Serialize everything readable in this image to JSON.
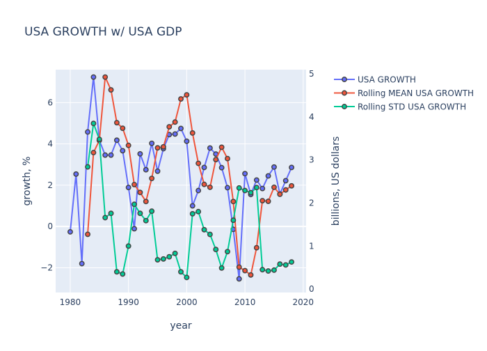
{
  "chart_data": {
    "type": "line",
    "title": "USA GROWTH w/ USA GDP",
    "xlabel": "year",
    "ylabel": "growth, %",
    "y2label": "billions, US dollars",
    "xlim": [
      1977.5,
      2020.5
    ],
    "ylim": [
      -3.2,
      7.6
    ],
    "y2lim": [
      -0.08,
      5.1
    ],
    "x_ticks": [
      1980,
      1990,
      2000,
      2010,
      2020
    ],
    "y_ticks": [
      -2,
      0,
      2,
      4,
      6
    ],
    "y2_ticks": [
      0,
      1,
      2,
      3,
      4,
      5
    ],
    "grid": true,
    "legend_position": "top-right",
    "colors": {
      "plot_bg": "#e5ecf6",
      "grid": "#ffffff",
      "text": "#2a3f5f",
      "marker_outline": "#444444"
    },
    "series": [
      {
        "name": "USA GROWTH",
        "axis": "y",
        "color": "#636efa",
        "x": [
          1980,
          1981,
          1982,
          1983,
          1984,
          1985,
          1986,
          1987,
          1988,
          1989,
          1990,
          1991,
          1992,
          1993,
          1994,
          1995,
          1996,
          1997,
          1998,
          1999,
          2000,
          2001,
          2002,
          2003,
          2004,
          2005,
          2006,
          2007,
          2008,
          2009,
          2010,
          2011,
          2012,
          2013,
          2014,
          2015,
          2016,
          2017,
          2018
        ],
        "values": [
          -0.26,
          2.54,
          -1.8,
          4.58,
          7.24,
          4.17,
          3.46,
          3.46,
          4.18,
          3.67,
          1.89,
          -0.11,
          3.52,
          2.75,
          4.03,
          2.68,
          3.77,
          4.45,
          4.48,
          4.75,
          4.13,
          1.0,
          1.74,
          2.86,
          3.8,
          3.51,
          2.85,
          1.88,
          -0.14,
          -2.54,
          2.56,
          1.55,
          2.25,
          1.84,
          2.45,
          2.88,
          1.57,
          2.22,
          2.86
        ]
      },
      {
        "name": "Rolling MEAN USA GROWTH",
        "axis": "y",
        "color": "#ef553b",
        "x": [
          1983,
          1984,
          1985,
          1986,
          1987,
          1988,
          1989,
          1990,
          1991,
          1992,
          1993,
          1994,
          1995,
          1996,
          1997,
          1998,
          1999,
          2000,
          2001,
          2002,
          2003,
          2004,
          2005,
          2006,
          2007,
          2008,
          2009,
          2010,
          2011,
          2012,
          2013,
          2014,
          2015,
          2016,
          2017,
          2018
        ],
        "values": [
          -0.38,
          3.58,
          4.17,
          7.24,
          6.62,
          5.03,
          4.76,
          3.93,
          2.03,
          1.65,
          1.21,
          2.33,
          3.81,
          3.86,
          4.83,
          5.06,
          6.18,
          6.38,
          4.53,
          3.06,
          2.04,
          1.9,
          3.24,
          3.84,
          3.29,
          1.21,
          -1.97,
          -2.14,
          -2.35,
          -1.03,
          1.25,
          1.22,
          1.9,
          1.56,
          1.77,
          1.97
        ]
      },
      {
        "name": "Rolling STD USA GROWTH",
        "axis": "y2",
        "color": "#00cc96",
        "x": [
          1983,
          1984,
          1985,
          1986,
          1987,
          1988,
          1989,
          1990,
          1991,
          1992,
          1993,
          1994,
          1995,
          1996,
          1997,
          1998,
          1999,
          2000,
          2001,
          2002,
          2003,
          2004,
          2005,
          2006,
          2007,
          2008,
          2009,
          2010,
          2011,
          2012,
          2013,
          2014,
          2015,
          2016,
          2017,
          2018
        ],
        "values": [
          2.84,
          3.85,
          3.48,
          1.66,
          1.76,
          0.4,
          0.35,
          1.0,
          1.97,
          1.76,
          1.59,
          1.81,
          0.68,
          0.7,
          0.75,
          0.83,
          0.4,
          0.27,
          1.75,
          1.8,
          1.38,
          1.27,
          0.92,
          0.49,
          0.87,
          1.6,
          2.35,
          2.29,
          2.24,
          2.36,
          0.45,
          0.42,
          0.44,
          0.58,
          0.56,
          0.63
        ]
      }
    ]
  }
}
